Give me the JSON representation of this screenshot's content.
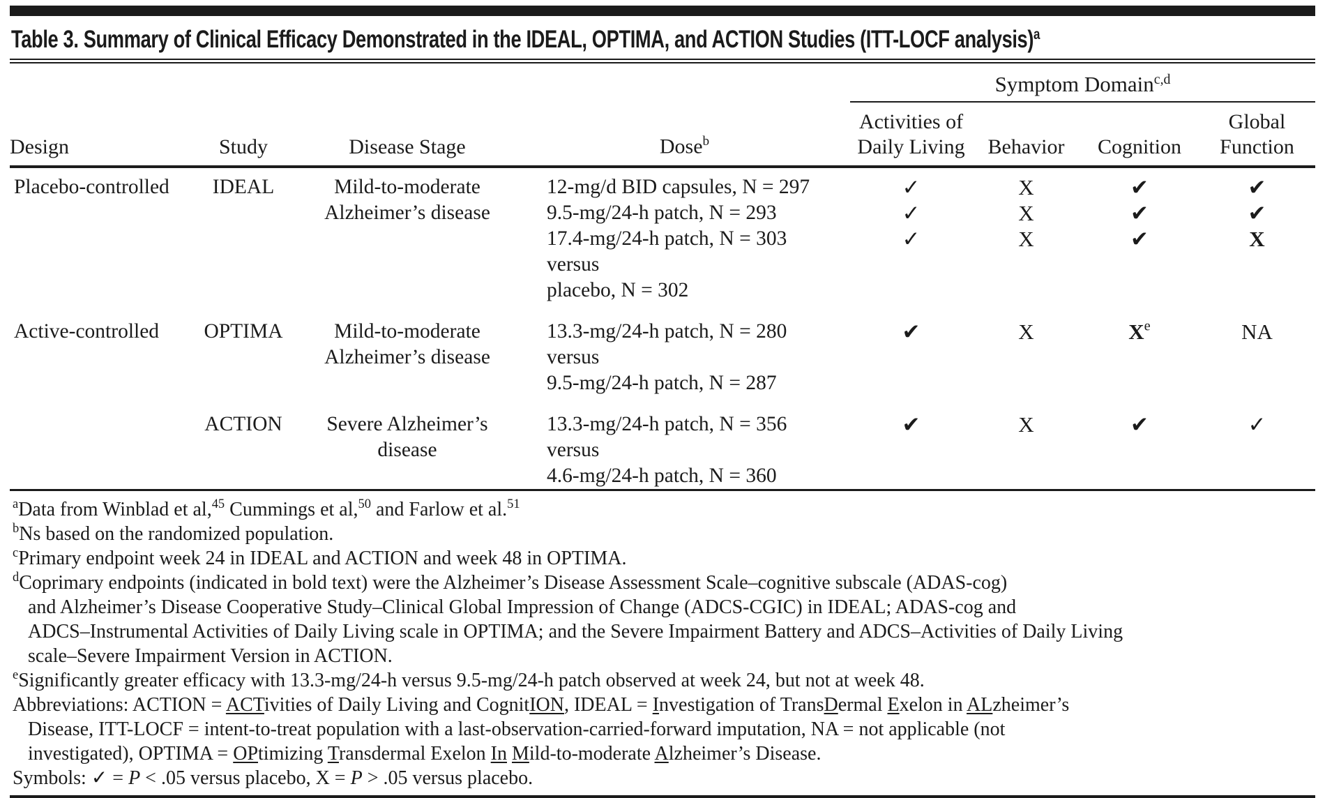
{
  "colors": {
    "ink": "#1b1b1b",
    "background": "#ffffff"
  },
  "title": {
    "text": "Table 3. Summary of Clinical Efficacy Demonstrated in the IDEAL, OPTIMA, and ACTION Studies (ITT-LOCF analysis)",
    "sup": "a"
  },
  "header": {
    "symptom_domain": {
      "label": "Symptom Domain",
      "sup": "c,d"
    },
    "columns": {
      "design": "Design",
      "study": "Study",
      "stage": "Disease Stage",
      "dose": "Dose",
      "dose_sup": "b",
      "adl1": "Activities of",
      "adl2": "Daily Living",
      "behavior": "Behavior",
      "cognition": "Cognition",
      "global1": "Global",
      "global2": "Function"
    }
  },
  "symbol_legend": {
    "check": "P < .05 versus placebo",
    "x": "P > .05 versus placebo",
    "bold": "coprimary endpoint"
  },
  "rows": [
    {
      "design": "Placebo-controlled",
      "study": "IDEAL",
      "stage": [
        "Mild-to-moderate",
        "Alzheimer’s disease"
      ],
      "lines": [
        {
          "dose": "12-mg/d BID capsules, N = 297",
          "adl": {
            "g": "✓"
          },
          "behavior": {
            "g": "X"
          },
          "cognition": {
            "g": "✔",
            "b": true
          },
          "global": {
            "g": "✔",
            "b": true
          }
        },
        {
          "dose": "9.5-mg/24-h patch, N = 293",
          "adl": {
            "g": "✓"
          },
          "behavior": {
            "g": "X"
          },
          "cognition": {
            "g": "✔",
            "b": true
          },
          "global": {
            "g": "✔",
            "b": true
          }
        },
        {
          "dose": "17.4-mg/24-h patch, N = 303",
          "adl": {
            "g": "✓"
          },
          "behavior": {
            "g": "X"
          },
          "cognition": {
            "g": "✔",
            "b": true
          },
          "global": {
            "g": "X",
            "b": true
          }
        },
        {
          "dose": "versus"
        },
        {
          "dose": "placebo, N = 302"
        }
      ]
    },
    {
      "design": "Active-controlled",
      "study": "OPTIMA",
      "stage": [
        "Mild-to-moderate",
        "Alzheimer’s disease"
      ],
      "lines": [
        {
          "dose": "13.3-mg/24-h patch, N = 280",
          "adl": {
            "g": "✔",
            "b": true
          },
          "behavior": {
            "g": "X"
          },
          "cognition": {
            "g": "X",
            "b": true,
            "sup": "e"
          },
          "global": {
            "g": "NA"
          }
        },
        {
          "dose": "versus"
        },
        {
          "dose": "9.5-mg/24-h patch, N = 287"
        }
      ]
    },
    {
      "design": "",
      "study": "ACTION",
      "stage": [
        "Severe Alzheimer’s",
        "disease"
      ],
      "lines": [
        {
          "dose": "13.3-mg/24-h patch, N = 356",
          "adl": {
            "g": "✔",
            "b": true
          },
          "behavior": {
            "g": "X"
          },
          "cognition": {
            "g": "✔",
            "b": true
          },
          "global": {
            "g": "✓"
          }
        },
        {
          "dose": "versus"
        },
        {
          "dose": "4.6-mg/24-h patch, N = 360"
        }
      ]
    }
  ],
  "footnotes": [
    {
      "indent": false,
      "segments": [
        {
          "t": "a",
          "s": "sup"
        },
        {
          "t": "Data from Winblad et al,"
        },
        {
          "t": "45",
          "s": "sup"
        },
        {
          "t": " Cummings et al,"
        },
        {
          "t": "50",
          "s": "sup"
        },
        {
          "t": " and Farlow et al."
        },
        {
          "t": "51",
          "s": "sup"
        }
      ]
    },
    {
      "indent": false,
      "segments": [
        {
          "t": "b",
          "s": "sup"
        },
        {
          "t": "Ns based on the randomized population."
        }
      ]
    },
    {
      "indent": false,
      "segments": [
        {
          "t": "c",
          "s": "sup"
        },
        {
          "t": "Primary endpoint week 24 in IDEAL and ACTION and week 48 in OPTIMA."
        }
      ]
    },
    {
      "indent": false,
      "segments": [
        {
          "t": "d",
          "s": "sup"
        },
        {
          "t": "Coprimary endpoints (indicated in bold text) were the Alzheimer’s Disease Assessment Scale–cognitive subscale (ADAS-cog)"
        }
      ]
    },
    {
      "indent": true,
      "segments": [
        {
          "t": "and Alzheimer’s Disease Cooperative Study–Clinical Global Impression of Change (ADCS-CGIC) in IDEAL; ADAS-cog and"
        }
      ]
    },
    {
      "indent": true,
      "segments": [
        {
          "t": "ADCS–Instrumental Activities of Daily Living scale in OPTIMA; and the Severe Impairment Battery and ADCS–Activities of Daily Living"
        }
      ]
    },
    {
      "indent": true,
      "segments": [
        {
          "t": "scale–Severe Impairment Version in ACTION."
        }
      ]
    },
    {
      "indent": false,
      "segments": [
        {
          "t": "e",
          "s": "sup"
        },
        {
          "t": "Significantly greater efficacy with 13.3-mg/24-h versus 9.5-mg/24-h patch observed at week 24, but not at week 48."
        }
      ]
    },
    {
      "indent": false,
      "segments": [
        {
          "t": "Abbreviations: ACTION = "
        },
        {
          "t": "ACT",
          "s": "u"
        },
        {
          "t": "ivities of Daily Living and Cognit"
        },
        {
          "t": "ION",
          "s": "u"
        },
        {
          "t": ", IDEAL = "
        },
        {
          "t": "I",
          "s": "u"
        },
        {
          "t": "nvestigation of Trans"
        },
        {
          "t": "D",
          "s": "u"
        },
        {
          "t": "ermal "
        },
        {
          "t": "E",
          "s": "u"
        },
        {
          "t": "xelon in "
        },
        {
          "t": "AL",
          "s": "u"
        },
        {
          "t": "zheimer’s"
        }
      ]
    },
    {
      "indent": true,
      "segments": [
        {
          "t": "Disease, ITT-LOCF = intent-to-treat population with a last-observation-carried-forward imputation, NA = not applicable (not"
        }
      ]
    },
    {
      "indent": true,
      "segments": [
        {
          "t": "investigated), OPTIMA = "
        },
        {
          "t": "OP",
          "s": "u"
        },
        {
          "t": "timizing "
        },
        {
          "t": "T",
          "s": "u"
        },
        {
          "t": "ransdermal Exelon "
        },
        {
          "t": "In",
          "s": "u"
        },
        {
          "t": " "
        },
        {
          "t": "M",
          "s": "u"
        },
        {
          "t": "ild-to-moderate "
        },
        {
          "t": "A",
          "s": "u"
        },
        {
          "t": "lzheimer’s Disease."
        }
      ]
    },
    {
      "indent": false,
      "segments": [
        {
          "t": "Symbols: ✓ = "
        },
        {
          "t": "P",
          "s": "i"
        },
        {
          "t": " < .05 versus placebo, X = "
        },
        {
          "t": "P",
          "s": "i"
        },
        {
          "t": " > .05 versus placebo."
        }
      ]
    }
  ]
}
